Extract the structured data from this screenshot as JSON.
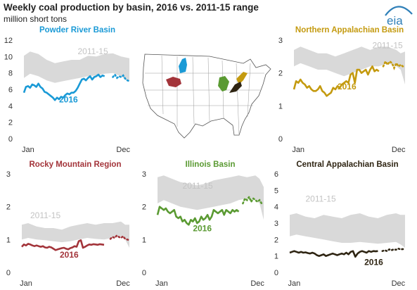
{
  "header": {
    "title": "Weekly coal production by basin, 2016 vs. 2011-15 range",
    "subtitle": "million short tons",
    "logo_text": "eia"
  },
  "colors": {
    "powder_river": "#1a9ad6",
    "northern_app": "#c49a0f",
    "rocky": "#a3343a",
    "illinois": "#5a9a32",
    "central_app": "#2e2412",
    "range_band": "#d9d9d9",
    "range_label": "#c3c3c3",
    "axis_text": "#333333",
    "logo": "#2e7fb8"
  },
  "chart_data": [
    {
      "id": "powder",
      "type": "area",
      "title": "Powder River Basin",
      "ylim": [
        0,
        12
      ],
      "yticks": [
        0,
        2,
        4,
        6,
        8,
        10,
        12
      ],
      "xlim": [
        1,
        52
      ],
      "xticks": [
        {
          "x": 3,
          "label": "Jan"
        },
        {
          "x": 49,
          "label": "Dec"
        }
      ],
      "range_label": "2011-15",
      "range_label_at": [
        27,
        10.3
      ],
      "series_label": "2016",
      "series_label_at": [
        18,
        4.4
      ],
      "range": {
        "x": [
          1,
          4,
          8,
          12,
          16,
          20,
          24,
          28,
          32,
          36,
          40,
          44,
          48,
          50,
          52
        ],
        "low": [
          7.4,
          7.9,
          7.6,
          7.1,
          6.8,
          7.0,
          7.2,
          7.4,
          7.6,
          7.7,
          7.9,
          8.0,
          7.6,
          7.2,
          7.0
        ],
        "high": [
          10.1,
          10.6,
          10.3,
          9.6,
          9.2,
          9.4,
          9.6,
          9.6,
          10.1,
          10.0,
          10.3,
          10.4,
          10.0,
          9.9,
          9.8
        ]
      },
      "actual": {
        "x": [
          1,
          2,
          3,
          4,
          5,
          6,
          7,
          8,
          9,
          10,
          11,
          12,
          13,
          14,
          15,
          16,
          17,
          18,
          19,
          20,
          21,
          22,
          23,
          24,
          25,
          26,
          27,
          28,
          29,
          30,
          31,
          32,
          33,
          34,
          35,
          36,
          37,
          38,
          39,
          40
        ],
        "y": [
          5.6,
          6.3,
          6.4,
          6.2,
          6.6,
          6.5,
          6.3,
          6.7,
          6.3,
          6.1,
          5.7,
          5.6,
          5.4,
          5.2,
          5.0,
          4.7,
          5.0,
          4.8,
          5.1,
          5.0,
          5.3,
          5.5,
          5.4,
          5.6,
          5.6,
          5.8,
          6.2,
          6.7,
          7.2,
          7.3,
          7.1,
          7.4,
          7.6,
          7.2,
          7.5,
          7.6,
          7.8,
          7.5,
          7.7,
          7.6
        ]
      },
      "estimate": {
        "x": [
          44,
          45,
          46,
          47,
          48,
          49,
          50,
          51,
          52
        ],
        "y": [
          7.5,
          7.8,
          7.4,
          7.6,
          7.5,
          7.7,
          7.3,
          7.1,
          7.0
        ]
      }
    },
    {
      "id": "napp",
      "type": "area",
      "title": "Northern Appalachian Basin",
      "ylim": [
        0,
        3
      ],
      "yticks": [
        0,
        1,
        2,
        3
      ],
      "xlim": [
        1,
        52
      ],
      "xticks": [
        {
          "x": 3,
          "label": "Jan"
        },
        {
          "x": 49,
          "label": "Dec"
        }
      ],
      "range_label": "2011-15",
      "range_label_at": [
        37,
        2.75
      ],
      "series_label": "2016",
      "series_label_at": [
        21,
        1.5
      ],
      "range": {
        "x": [
          1,
          4,
          8,
          12,
          16,
          20,
          24,
          28,
          32,
          36,
          40,
          44,
          48,
          50,
          52
        ],
        "low": [
          2.2,
          2.3,
          2.2,
          2.1,
          2.1,
          2.0,
          1.9,
          2.0,
          2.1,
          2.2,
          2.2,
          2.3,
          2.2,
          2.1,
          1.65
        ],
        "high": [
          2.7,
          2.8,
          2.7,
          2.6,
          2.6,
          2.5,
          2.6,
          2.7,
          2.8,
          2.7,
          2.8,
          2.8,
          2.7,
          2.6,
          2.65
        ]
      },
      "actual": {
        "x": [
          1,
          2,
          3,
          4,
          5,
          6,
          7,
          8,
          9,
          10,
          11,
          12,
          13,
          14,
          15,
          16,
          17,
          18,
          19,
          20,
          21,
          22,
          23,
          24,
          25,
          26,
          27,
          28,
          29,
          30,
          31,
          32,
          33,
          34,
          35,
          36,
          37,
          38,
          39,
          40
        ],
        "y": [
          1.5,
          1.75,
          1.7,
          1.8,
          1.7,
          1.65,
          1.55,
          1.6,
          1.5,
          1.45,
          1.45,
          1.5,
          1.6,
          1.45,
          1.4,
          1.3,
          1.35,
          1.4,
          1.55,
          1.5,
          1.6,
          1.55,
          1.65,
          1.7,
          1.75,
          1.7,
          1.95,
          2.0,
          1.7,
          2.1,
          2.1,
          2.0,
          2.05,
          2.1,
          1.95,
          2.1,
          2.2,
          2.05,
          2.1,
          2.05
        ]
      },
      "estimate": {
        "x": [
          42,
          43,
          44,
          45,
          46,
          47,
          48,
          49,
          50,
          51,
          52
        ],
        "y": [
          2.2,
          2.35,
          2.25,
          2.35,
          2.3,
          2.15,
          2.3,
          2.2,
          2.25,
          2.2,
          2.2
        ]
      }
    },
    {
      "id": "rocky",
      "type": "area",
      "title": "Rocky Mountain Region",
      "ylim": [
        0,
        3
      ],
      "yticks": [
        0,
        1,
        2,
        3
      ],
      "xlim": [
        1,
        52
      ],
      "xticks": [
        {
          "x": 3,
          "label": "Jan"
        },
        {
          "x": 49,
          "label": "Dec"
        }
      ],
      "range_label": "2011-15",
      "range_label_at": [
        5,
        1.65
      ],
      "series_label": "2016",
      "series_label_at": [
        19,
        0.45
      ],
      "range": {
        "x": [
          1,
          4,
          8,
          12,
          16,
          20,
          24,
          28,
          32,
          36,
          40,
          44,
          48,
          50,
          52
        ],
        "low": [
          1.0,
          1.05,
          1.0,
          0.98,
          0.95,
          0.92,
          0.95,
          1.0,
          1.05,
          1.02,
          1.0,
          1.05,
          1.1,
          1.0,
          0.75
        ],
        "high": [
          1.45,
          1.5,
          1.4,
          1.35,
          1.35,
          1.3,
          1.4,
          1.45,
          1.5,
          1.45,
          1.5,
          1.5,
          1.55,
          1.45,
          1.45
        ]
      },
      "actual": {
        "x": [
          1,
          2,
          3,
          4,
          5,
          6,
          7,
          8,
          9,
          10,
          11,
          12,
          13,
          14,
          15,
          16,
          17,
          18,
          19,
          20,
          21,
          22,
          23,
          24,
          25,
          26,
          27,
          28,
          29,
          30,
          31,
          32,
          33,
          34,
          35,
          36,
          37,
          38,
          39,
          40
        ],
        "y": [
          0.78,
          0.85,
          0.82,
          0.87,
          0.85,
          0.82,
          0.8,
          0.82,
          0.8,
          0.78,
          0.8,
          0.76,
          0.75,
          0.78,
          0.76,
          0.72,
          0.68,
          0.7,
          0.72,
          0.74,
          0.75,
          0.72,
          0.7,
          0.74,
          0.76,
          0.8,
          0.78,
          0.95,
          0.98,
          0.75,
          0.78,
          0.82,
          0.85,
          0.84,
          0.86,
          0.85,
          0.84,
          0.86,
          0.85,
          0.84
        ]
      },
      "estimate": {
        "x": [
          43,
          44,
          45,
          46,
          47,
          48,
          49,
          50,
          51,
          52
        ],
        "y": [
          1.02,
          1.08,
          1.05,
          1.12,
          1.08,
          1.05,
          1.1,
          1.02,
          1.0,
          0.98
        ]
      }
    },
    {
      "id": "illinois",
      "type": "area",
      "title": "Illinois Basin",
      "ylim": [
        0,
        3
      ],
      "yticks": [
        0,
        1,
        2,
        3
      ],
      "xlim": [
        1,
        52
      ],
      "xticks": [
        {
          "x": 3,
          "label": "Jan"
        },
        {
          "x": 49,
          "label": "Dec"
        }
      ],
      "range_label": "2011-15",
      "range_label_at": [
        13,
        2.55
      ],
      "series_label": "2016",
      "series_label_at": [
        18,
        1.25
      ],
      "range": {
        "x": [
          1,
          4,
          8,
          12,
          16,
          20,
          24,
          28,
          32,
          36,
          40,
          44,
          48,
          50,
          52
        ],
        "low": [
          2.1,
          2.2,
          2.1,
          2.0,
          1.95,
          1.9,
          1.95,
          2.0,
          2.05,
          2.1,
          2.2,
          2.25,
          2.2,
          2.1,
          1.6
        ],
        "high": [
          2.9,
          2.95,
          2.85,
          2.75,
          2.7,
          2.65,
          2.7,
          2.8,
          2.85,
          2.9,
          2.95,
          2.9,
          2.95,
          2.85,
          2.6
        ]
      },
      "actual": {
        "x": [
          1,
          2,
          3,
          4,
          5,
          6,
          7,
          8,
          9,
          10,
          11,
          12,
          13,
          14,
          15,
          16,
          17,
          18,
          19,
          20,
          21,
          22,
          23,
          24,
          25,
          26,
          27,
          28,
          29,
          30,
          31,
          32,
          33,
          34,
          35,
          36,
          37,
          38,
          39,
          40
        ],
        "y": [
          1.75,
          2.0,
          1.95,
          1.9,
          1.95,
          1.85,
          1.8,
          1.85,
          1.9,
          1.7,
          1.65,
          1.7,
          1.55,
          1.6,
          1.5,
          1.45,
          1.6,
          1.55,
          1.65,
          1.5,
          1.55,
          1.7,
          1.6,
          1.65,
          1.75,
          1.6,
          1.7,
          1.9,
          1.85,
          1.8,
          1.85,
          1.9,
          1.75,
          1.9,
          1.85,
          1.8,
          1.9,
          1.85,
          1.9,
          1.85
        ]
      },
      "estimate": {
        "x": [
          42,
          43,
          44,
          45,
          46,
          47,
          48,
          49,
          50,
          51,
          52
        ],
        "y": [
          2.1,
          2.25,
          2.2,
          2.3,
          2.15,
          2.25,
          2.2,
          2.15,
          2.2,
          2.1,
          2.1
        ]
      }
    },
    {
      "id": "capp",
      "type": "area",
      "title": "Central Appalachian Basin",
      "ylim": [
        0,
        6
      ],
      "yticks": [
        0,
        1,
        2,
        3,
        4,
        5,
        6
      ],
      "xlim": [
        1,
        52
      ],
      "xticks": [
        {
          "x": 3,
          "label": "Jan"
        },
        {
          "x": 49,
          "label": "Dec"
        }
      ],
      "range_label": "2011-15",
      "range_label_at": [
        8,
        4.3
      ],
      "series_label": "2016",
      "series_label_at": [
        34,
        0.45
      ],
      "range": {
        "x": [
          1,
          4,
          8,
          12,
          16,
          20,
          24,
          28,
          32,
          36,
          40,
          44,
          48,
          50,
          52
        ],
        "low": [
          2.2,
          2.3,
          2.2,
          2.1,
          2.0,
          1.9,
          1.8,
          1.8,
          1.85,
          1.8,
          1.75,
          1.8,
          1.85,
          1.7,
          1.5
        ],
        "high": [
          3.5,
          3.6,
          3.4,
          3.3,
          3.5,
          3.4,
          3.3,
          3.5,
          3.6,
          3.4,
          3.3,
          3.5,
          3.6,
          3.5,
          3.5
        ]
      },
      "actual": {
        "x": [
          1,
          2,
          3,
          4,
          5,
          6,
          7,
          8,
          9,
          10,
          11,
          12,
          13,
          14,
          15,
          16,
          17,
          18,
          19,
          20,
          21,
          22,
          23,
          24,
          25,
          26,
          27,
          28,
          29,
          30,
          31,
          32,
          33,
          34,
          35,
          36,
          37,
          38,
          39,
          40
        ],
        "y": [
          1.2,
          1.25,
          1.3,
          1.25,
          1.2,
          1.25,
          1.2,
          1.22,
          1.18,
          1.15,
          1.2,
          1.15,
          1.05,
          1.0,
          1.05,
          1.1,
          1.0,
          1.05,
          1.1,
          1.15,
          1.1,
          1.05,
          1.1,
          1.15,
          1.1,
          1.2,
          1.1,
          1.25,
          1.3,
          0.95,
          1.15,
          1.25,
          1.3,
          1.25,
          1.2,
          1.3,
          1.25,
          1.3,
          1.28,
          1.3
        ]
      },
      "estimate": {
        "x": [
          42,
          43,
          44,
          45,
          46,
          47,
          48,
          49,
          50,
          51,
          52
        ],
        "y": [
          1.3,
          1.35,
          1.3,
          1.4,
          1.35,
          1.4,
          1.38,
          1.45,
          1.4,
          1.42,
          1.4
        ]
      }
    }
  ]
}
